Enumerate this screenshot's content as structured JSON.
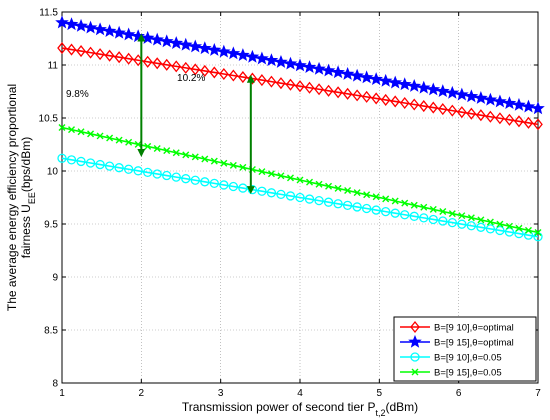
{
  "chart_data": {
    "type": "line",
    "title": "",
    "xlabel": "Transmission power of second tier P",
    "xlabel_sub": "t,2",
    "xlabel_suffix": "(dBm)",
    "ylabel_line1": "The average energy efficiency proportional",
    "ylabel_line2_main": "fairness U",
    "ylabel_line2_sub": "EE",
    "ylabel_line2_suffix": "(bps/dBm)",
    "xlim": [
      1,
      7
    ],
    "ylim": [
      8,
      11.5
    ],
    "xticks": [
      "1",
      "2",
      "3",
      "4",
      "5",
      "6",
      "7"
    ],
    "yticks": [
      "8",
      "8.5",
      "9",
      "9.5",
      "10",
      "10.5",
      "11",
      "11.5"
    ],
    "grid": true,
    "legend_position": "bottom-right",
    "series": [
      {
        "name": "B=[9   10],θ=optimal",
        "color": "#ff0000",
        "marker": "diamond",
        "start": 11.16,
        "end": 10.44
      },
      {
        "name": "B=[9   15],θ=optimal",
        "color": "#0000ff",
        "marker": "star",
        "start": 11.4,
        "end": 10.59
      },
      {
        "name": "B=[9   10],θ=0.05",
        "color": "#00ffff",
        "marker": "circle",
        "start": 10.12,
        "end": 9.38
      },
      {
        "name": "B=[9   15],θ=0.05",
        "color": "#00ff00",
        "marker": "x",
        "start": 10.41,
        "end": 9.42
      }
    ],
    "x_points": 51,
    "annotations": [
      {
        "text": "9.8%",
        "x": 1.05,
        "y": 10.7
      },
      {
        "text": "10.2%",
        "x": 2.45,
        "y": 10.85
      }
    ],
    "arrows": [
      {
        "x": 2.0,
        "y1": 11.26,
        "y2": 10.17,
        "color": "#008000"
      },
      {
        "x": 3.38,
        "y1": 10.87,
        "y2": 9.82,
        "color": "#008000"
      }
    ]
  }
}
